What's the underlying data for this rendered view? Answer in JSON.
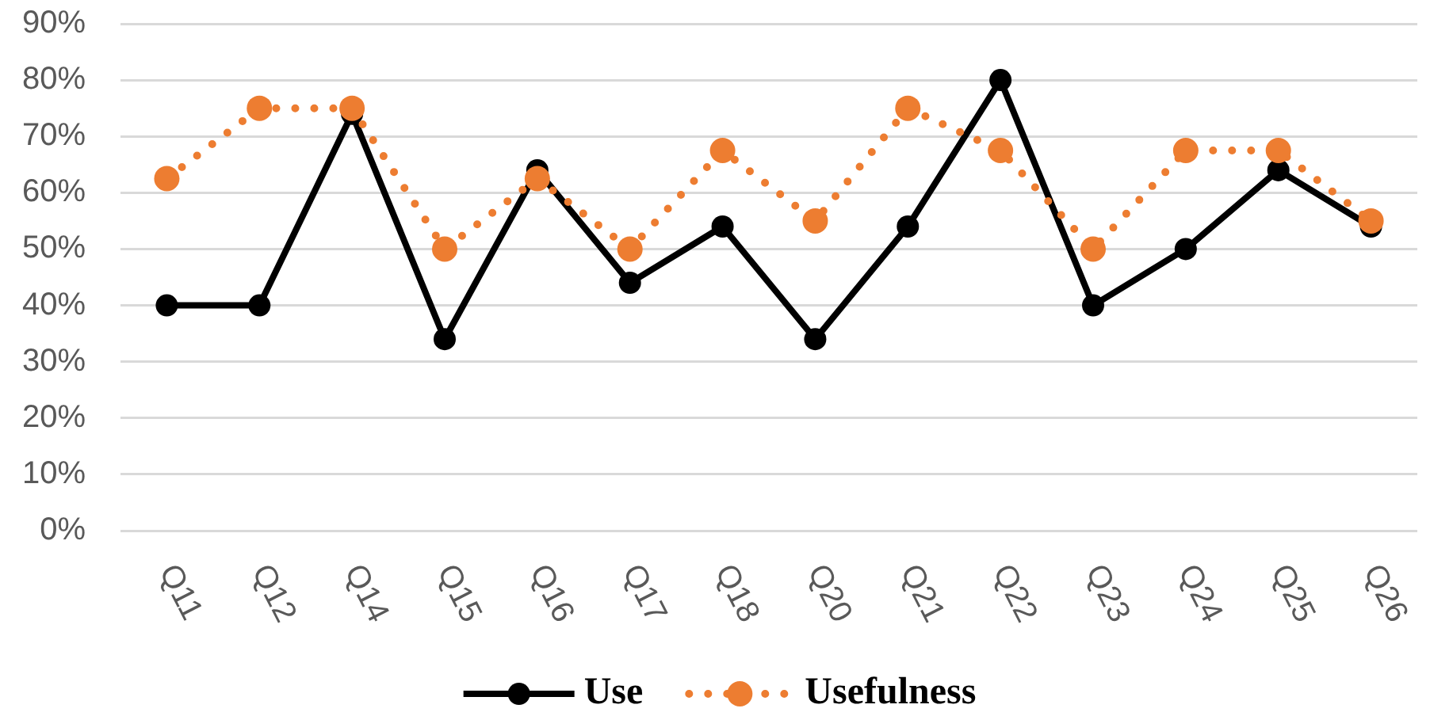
{
  "chart_data": {
    "type": "line",
    "categories": [
      "Q11",
      "Q12",
      "Q14",
      "Q15",
      "Q16",
      "Q17",
      "Q18",
      "Q20",
      "Q21",
      "Q22",
      "Q23",
      "Q24",
      "Q25",
      "Q26"
    ],
    "series": [
      {
        "name": "Use",
        "color": "#000000",
        "line_style": "solid",
        "values": [
          40,
          40,
          74,
          34,
          64,
          44,
          54,
          34,
          54,
          80,
          40,
          50,
          64,
          54
        ]
      },
      {
        "name": "Usefulness",
        "color": "#ed7d31",
        "line_style": "dotted",
        "values": [
          62.5,
          75,
          75,
          50,
          62.5,
          50,
          67.5,
          55,
          75,
          67.5,
          50,
          67.5,
          67.5,
          55
        ]
      }
    ],
    "ylim": [
      0,
      90
    ],
    "yticks": [
      {
        "value": 0,
        "label": "0%"
      },
      {
        "value": 10,
        "label": "10%"
      },
      {
        "value": 20,
        "label": "20%"
      },
      {
        "value": 30,
        "label": "30%"
      },
      {
        "value": 40,
        "label": "40%"
      },
      {
        "value": 50,
        "label": "50%"
      },
      {
        "value": 60,
        "label": "60%"
      },
      {
        "value": 70,
        "label": "70%"
      },
      {
        "value": 80,
        "label": "80%"
      },
      {
        "value": 90,
        "label": "90%"
      }
    ],
    "grid": "y",
    "legend": "bottom",
    "marker": "circle"
  }
}
